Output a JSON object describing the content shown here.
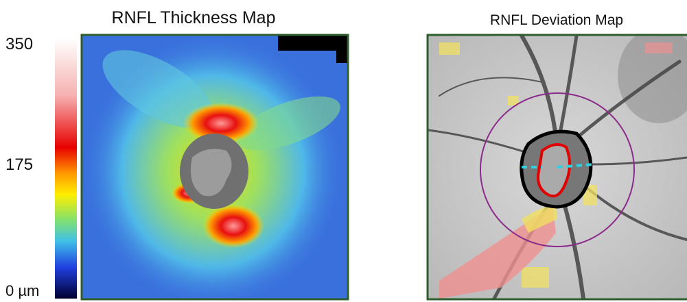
{
  "thickness_map": {
    "title": "RNFL Thickness Map",
    "scale_labels": [
      "350",
      "175",
      "0 µm"
    ]
  },
  "deviation_map": {
    "title": "RNFL Deviation Map"
  }
}
